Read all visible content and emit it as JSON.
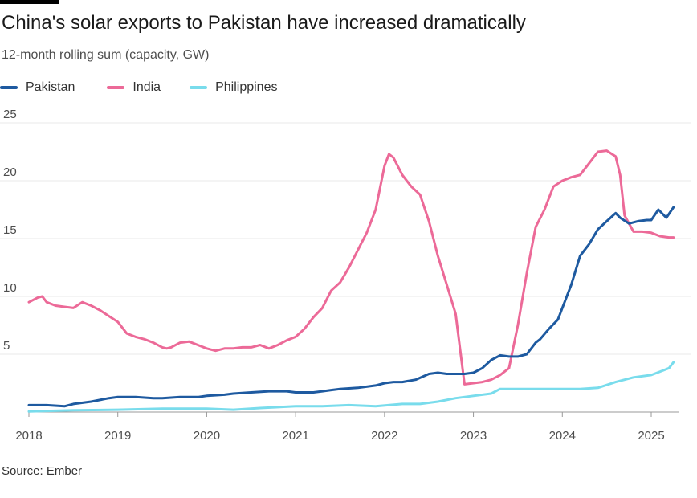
{
  "title": "China's solar exports to Pakistan have increased dramatically",
  "subtitle": "12-month rolling sum (capacity, GW)",
  "source": "Source: Ember",
  "colors": {
    "Pakistan": "#1e5aa0",
    "India": "#ec6a98",
    "Philippines": "#79dcec",
    "grid": "#e8e8e8",
    "axis": "#999999"
  },
  "chart_data": {
    "type": "line",
    "title": "China's solar exports to Pakistan have increased dramatically",
    "ylabel": "12-month rolling sum (capacity, GW)",
    "xlabel": "",
    "ylim": [
      0,
      25
    ],
    "yticks": [
      5,
      10,
      15,
      20,
      25
    ],
    "xlim": [
      2018.0,
      2025.28
    ],
    "xticks": [
      2018,
      2019,
      2020,
      2021,
      2022,
      2023,
      2024,
      2025
    ],
    "grid": true,
    "legend_position": "top-left",
    "series": [
      {
        "name": "Pakistan",
        "x": [
          2018.0,
          2018.2,
          2018.4,
          2018.5,
          2018.7,
          2018.9,
          2019.0,
          2019.2,
          2019.4,
          2019.5,
          2019.7,
          2019.9,
          2020.0,
          2020.2,
          2020.3,
          2020.5,
          2020.7,
          2020.9,
          2021.0,
          2021.1,
          2021.2,
          2021.3,
          2021.4,
          2021.5,
          2021.7,
          2021.9,
          2022.0,
          2022.1,
          2022.2,
          2022.35,
          2022.5,
          2022.6,
          2022.7,
          2022.8,
          2022.9,
          2023.0,
          2023.1,
          2023.2,
          2023.3,
          2023.4,
          2023.5,
          2023.6,
          2023.7,
          2023.75,
          2023.85,
          2023.95,
          2024.0,
          2024.1,
          2024.2,
          2024.3,
          2024.4,
          2024.5,
          2024.6,
          2024.65,
          2024.75,
          2024.85,
          2024.95,
          2025.0,
          2025.08,
          2025.17,
          2025.25
        ],
        "values": [
          0.6,
          0.6,
          0.5,
          0.7,
          0.9,
          1.2,
          1.3,
          1.3,
          1.2,
          1.2,
          1.3,
          1.3,
          1.4,
          1.5,
          1.6,
          1.7,
          1.8,
          1.8,
          1.7,
          1.7,
          1.7,
          1.8,
          1.9,
          2.0,
          2.1,
          2.3,
          2.5,
          2.6,
          2.6,
          2.8,
          3.3,
          3.4,
          3.3,
          3.3,
          3.3,
          3.4,
          3.8,
          4.5,
          4.9,
          4.8,
          4.8,
          5.0,
          6.0,
          6.3,
          7.2,
          8.0,
          9.0,
          11.0,
          13.5,
          14.5,
          15.8,
          16.5,
          17.2,
          16.8,
          16.3,
          16.5,
          16.6,
          16.6,
          17.5,
          16.8,
          17.7
        ]
      },
      {
        "name": "India",
        "x": [
          2018.0,
          2018.1,
          2018.15,
          2018.2,
          2018.3,
          2018.4,
          2018.5,
          2018.6,
          2018.7,
          2018.8,
          2018.9,
          2019.0,
          2019.1,
          2019.2,
          2019.3,
          2019.4,
          2019.5,
          2019.55,
          2019.6,
          2019.7,
          2019.8,
          2019.9,
          2020.0,
          2020.1,
          2020.2,
          2020.3,
          2020.4,
          2020.5,
          2020.6,
          2020.7,
          2020.8,
          2020.9,
          2021.0,
          2021.1,
          2021.2,
          2021.3,
          2021.4,
          2021.5,
          2021.6,
          2021.7,
          2021.8,
          2021.9,
          2022.0,
          2022.05,
          2022.1,
          2022.2,
          2022.3,
          2022.4,
          2022.5,
          2022.6,
          2022.7,
          2022.8,
          2022.9,
          2023.0,
          2023.1,
          2023.2,
          2023.25,
          2023.3,
          2023.4,
          2023.5,
          2023.6,
          2023.7,
          2023.8,
          2023.9,
          2024.0,
          2024.1,
          2024.2,
          2024.3,
          2024.4,
          2024.5,
          2024.6,
          2024.65,
          2024.7,
          2024.8,
          2024.9,
          2025.0,
          2025.1,
          2025.2,
          2025.25
        ],
        "values": [
          9.5,
          9.9,
          10.0,
          9.5,
          9.2,
          9.1,
          9.0,
          9.5,
          9.2,
          8.8,
          8.3,
          7.8,
          6.8,
          6.5,
          6.3,
          6.0,
          5.6,
          5.5,
          5.6,
          6.0,
          6.1,
          5.8,
          5.5,
          5.3,
          5.5,
          5.5,
          5.6,
          5.6,
          5.8,
          5.5,
          5.8,
          6.2,
          6.5,
          7.2,
          8.2,
          9.0,
          10.5,
          11.2,
          12.5,
          14.0,
          15.5,
          17.5,
          21.3,
          22.3,
          22.0,
          20.5,
          19.5,
          18.8,
          16.5,
          13.5,
          11.0,
          8.5,
          2.4,
          2.5,
          2.6,
          2.8,
          3.0,
          3.2,
          3.8,
          7.5,
          12.0,
          16.0,
          17.5,
          19.5,
          20.0,
          20.3,
          20.5,
          21.5,
          22.5,
          22.6,
          22.1,
          20.5,
          17.0,
          15.6,
          15.6,
          15.5,
          15.2,
          15.1,
          15.1
        ]
      },
      {
        "name": "Philippines",
        "x": [
          2018.0,
          2018.5,
          2019.0,
          2019.5,
          2020.0,
          2020.3,
          2020.6,
          2021.0,
          2021.3,
          2021.6,
          2021.9,
          2022.2,
          2022.4,
          2022.6,
          2022.8,
          2023.0,
          2023.2,
          2023.3,
          2023.5,
          2023.8,
          2024.0,
          2024.2,
          2024.4,
          2024.6,
          2024.8,
          2025.0,
          2025.1,
          2025.2,
          2025.25
        ],
        "values": [
          0.05,
          0.15,
          0.2,
          0.3,
          0.3,
          0.2,
          0.35,
          0.5,
          0.5,
          0.6,
          0.5,
          0.7,
          0.7,
          0.9,
          1.2,
          1.4,
          1.6,
          2.0,
          2.0,
          2.0,
          2.0,
          2.0,
          2.1,
          2.6,
          3.0,
          3.2,
          3.5,
          3.8,
          4.3
        ]
      }
    ]
  }
}
